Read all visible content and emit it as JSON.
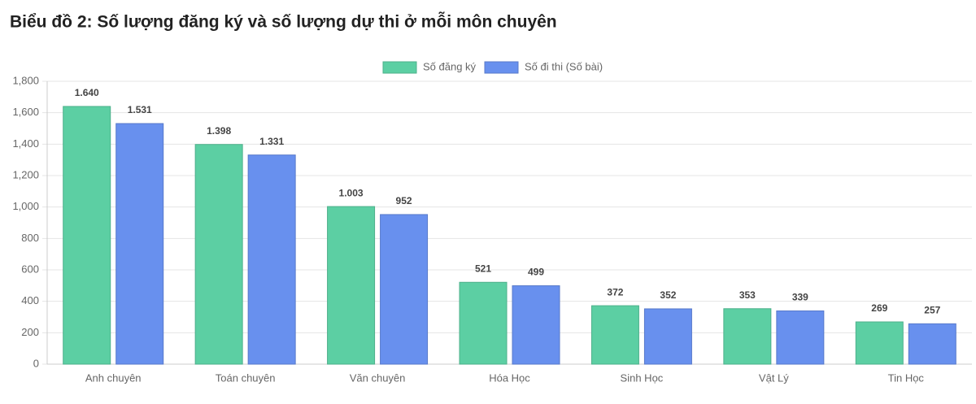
{
  "chart_data": {
    "type": "bar",
    "title": "Biểu đồ 2: Số lượng đăng ký và số lượng dự thi ở mỗi môn chuyên",
    "categories": [
      "Anh chuyên",
      "Toán chuyên",
      "Văn chuyên",
      "Hóa Học",
      "Sinh Học",
      "Vật Lý",
      "Tin Học"
    ],
    "series": [
      {
        "name": "Số đăng ký",
        "color": "#5ccfa3",
        "values": [
          1640,
          1398,
          1003,
          521,
          372,
          353,
          269
        ],
        "value_labels": [
          "1.640",
          "1.398",
          "1.003",
          "521",
          "372",
          "353",
          "269"
        ]
      },
      {
        "name": "Số đi thi (Số bài)",
        "color": "#6890ee",
        "values": [
          1531,
          1331,
          952,
          499,
          352,
          339,
          257
        ],
        "value_labels": [
          "1.531",
          "1.331",
          "952",
          "499",
          "352",
          "339",
          "257"
        ]
      }
    ],
    "ylim": [
      0,
      1800
    ],
    "yticks": [
      0,
      200,
      400,
      600,
      800,
      {
        "value": 1000,
        "label": "1,000"
      },
      {
        "value": 1200,
        "label": "1,200"
      },
      {
        "value": 1400,
        "label": "1,400"
      },
      {
        "value": 1600,
        "label": "1,600"
      },
      {
        "value": 1800,
        "label": "1,800"
      }
    ],
    "grid": true,
    "legend": "top"
  }
}
